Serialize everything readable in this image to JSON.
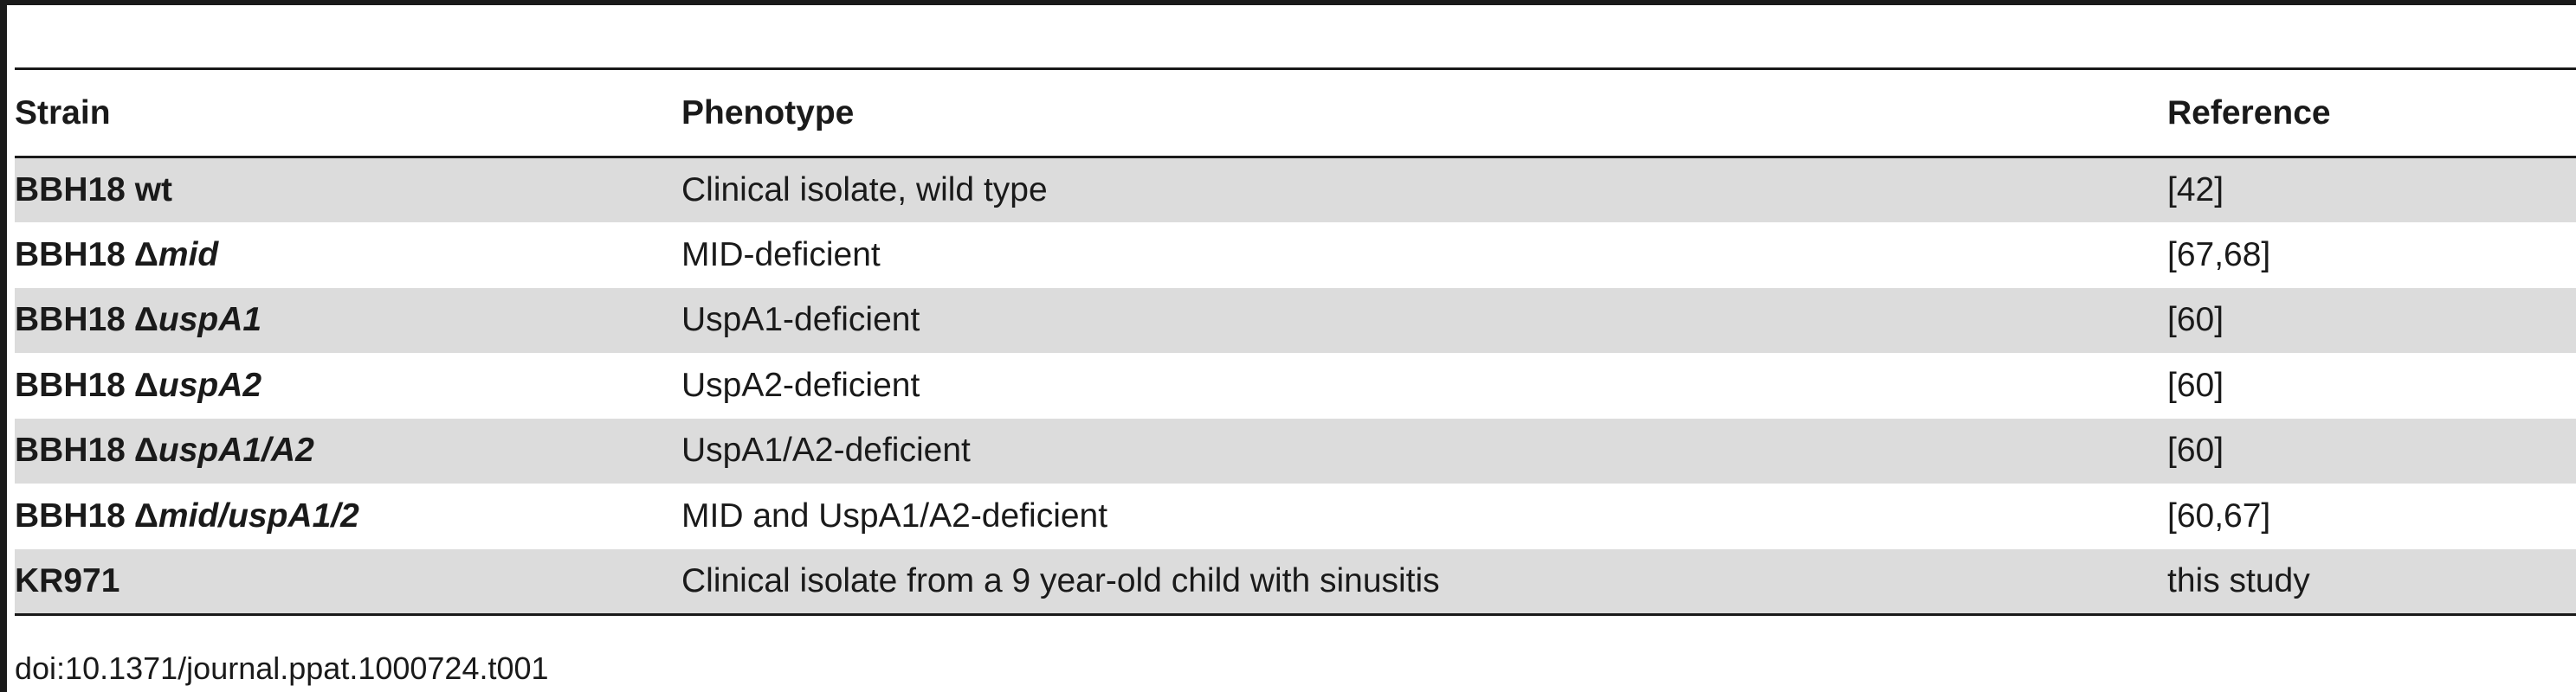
{
  "table": {
    "headers": [
      "Strain",
      "Phenotype",
      "Reference"
    ],
    "rows": [
      {
        "strain": "BBH18 wt",
        "delta": "",
        "gene": "",
        "phenotype": "Clinical isolate, wild type",
        "reference": "[42]"
      },
      {
        "strain": "BBH18",
        "delta": "Δ",
        "gene": "mid",
        "phenotype": "MID-deficient",
        "reference": "[67,68]"
      },
      {
        "strain": "BBH18",
        "delta": "Δ",
        "gene": "uspA1",
        "phenotype": "UspA1-deficient",
        "reference": "[60]"
      },
      {
        "strain": "BBH18",
        "delta": "Δ",
        "gene": "uspA2",
        "phenotype": "UspA2-deficient",
        "reference": "[60]"
      },
      {
        "strain": "BBH18",
        "delta": "Δ",
        "gene": "uspA1/A2",
        "phenotype": "UspA1/A2-deficient",
        "reference": "[60]"
      },
      {
        "strain": "BBH18",
        "delta": "Δ",
        "gene": "mid/uspA1/2",
        "phenotype": "MID and UspA1/A2-deficient",
        "reference": "[60,67]"
      },
      {
        "strain": "KR971",
        "delta": "",
        "gene": "",
        "phenotype": "Clinical isolate from a 9 year-old child with sinusitis",
        "reference": "this study"
      }
    ]
  },
  "footer": {
    "doi": "doi:10.1371/journal.ppat.1000724.t001"
  }
}
